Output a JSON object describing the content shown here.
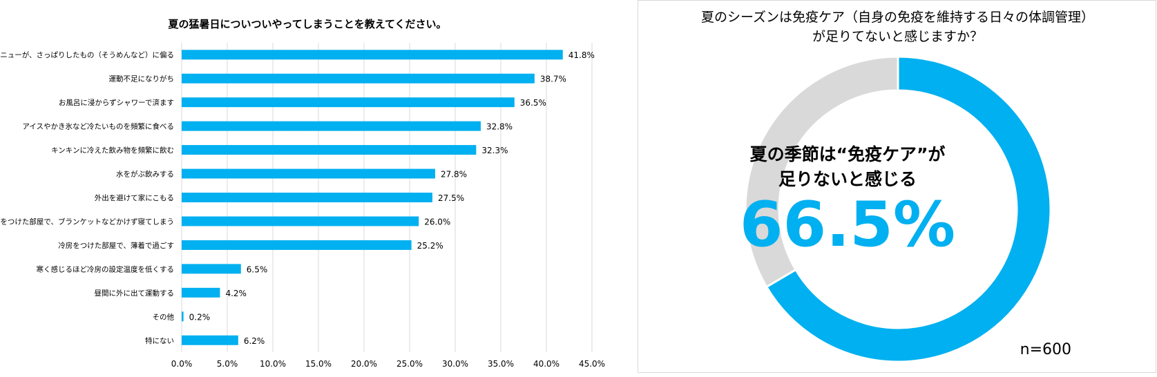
{
  "chart_data": [
    {
      "type": "bar",
      "orientation": "horizontal",
      "title": "夏の猛暑日についついやってしまうことを教えてください。",
      "categories": [
        "食事のメニューが、さっぱりしたもの（そうめんなど）に偏る",
        "運動不足になりがち",
        "お風呂に浸からずシャワーで済ます",
        "アイスやかき氷など冷たいものを頻繁に食べる",
        "キンキンに冷えた飲み物を頻繁に飲む",
        "水をがぶ飲みする",
        "外出を避けて家にこもる",
        "冷房をつけた部屋で、ブランケットなどかけず寝てしまう",
        "冷房をつけた部屋で、薄着で過ごす",
        "寒く感じるほど冷房の設定温度を低くする",
        "昼間に外に出て運動する",
        "その他",
        "特にない"
      ],
      "values": [
        41.8,
        38.7,
        36.5,
        32.8,
        32.3,
        27.8,
        27.5,
        26.0,
        25.2,
        6.5,
        4.2,
        0.2,
        6.2
      ],
      "value_labels": [
        "41.8%",
        "38.7%",
        "36.5%",
        "32.8%",
        "32.3%",
        "27.8%",
        "27.5%",
        "26.0%",
        "25.2%",
        "6.5%",
        "4.2%",
        "0.2%",
        "6.2%"
      ],
      "x_ticks": [
        "0.0%",
        "5.0%",
        "10.0%",
        "15.0%",
        "20.0%",
        "25.0%",
        "30.0%",
        "35.0%",
        "40.0%",
        "45.0%"
      ],
      "xlim": [
        0,
        45
      ],
      "grid": true,
      "bar_color": "#00b0f0"
    },
    {
      "type": "pie",
      "variant": "donut",
      "title": "夏のシーズンは免疫ケア（自身の免疫を維持する日々の体調管理）が足りてないと感じますか？",
      "title_lines": [
        "夏のシーズンは免疫ケア（自身の免疫を維持する日々の体調管理）",
        "が足りてないと感じますか？"
      ],
      "values": [
        66.5,
        33.5
      ],
      "colors": [
        "#00b0f0",
        "#d9d9d9"
      ],
      "center_text_lines": [
        "夏の季節は“免疫ケア”が",
        "足りないと感じる"
      ],
      "center_value": "66.5%",
      "sample_size": "n=600"
    }
  ]
}
